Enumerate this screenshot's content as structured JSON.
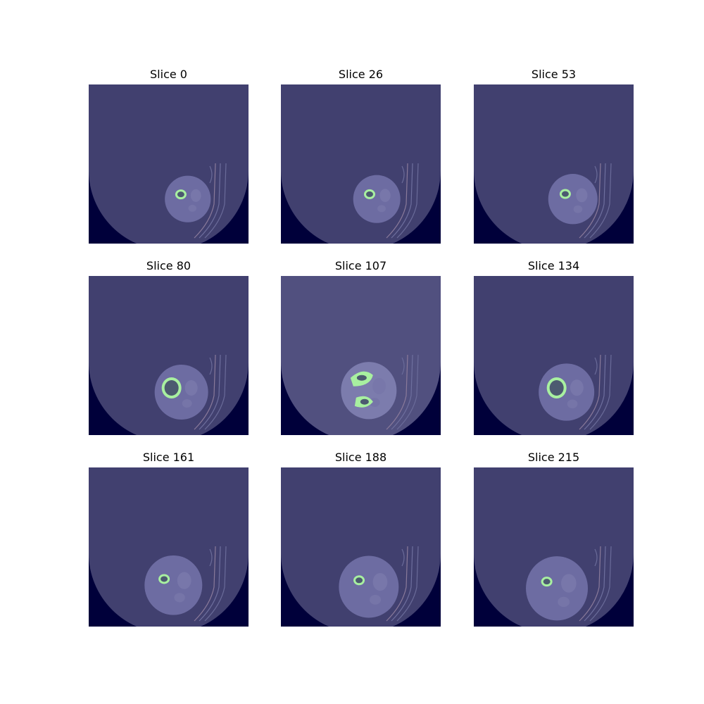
{
  "figure": {
    "panels": [
      {
        "title": "Slice 0",
        "bones": "one-small",
        "limb_scale": 0.82,
        "limb_cx": 0.62,
        "limb_cy": 0.72,
        "bright": false
      },
      {
        "title": "Slice 26",
        "bones": "one-small",
        "limb_scale": 0.85,
        "limb_cx": 0.6,
        "limb_cy": 0.72,
        "bright": false
      },
      {
        "title": "Slice 53",
        "bones": "one-small",
        "limb_scale": 0.9,
        "limb_cx": 0.62,
        "limb_cy": 0.72,
        "bright": false
      },
      {
        "title": "Slice 80",
        "bones": "one-large",
        "limb_scale": 1.0,
        "limb_cx": 0.58,
        "limb_cy": 0.73,
        "bright": false
      },
      {
        "title": "Slice 107",
        "bones": "two",
        "limb_scale": 1.05,
        "limb_cx": 0.55,
        "limb_cy": 0.72,
        "bright": true
      },
      {
        "title": "Slice 134",
        "bones": "one-large",
        "limb_scale": 1.05,
        "limb_cx": 0.58,
        "limb_cy": 0.73,
        "bright": false
      },
      {
        "title": "Slice 161",
        "bones": "one-small",
        "limb_scale": 1.1,
        "limb_cx": 0.53,
        "limb_cy": 0.74,
        "bright": false
      },
      {
        "title": "Slice 188",
        "bones": "one-small",
        "limb_scale": 1.15,
        "limb_cx": 0.55,
        "limb_cy": 0.75,
        "bright": false
      },
      {
        "title": "Slice 215",
        "bones": "one-small",
        "limb_scale": 1.2,
        "limb_cx": 0.52,
        "limb_cy": 0.76,
        "bright": false
      }
    ]
  }
}
